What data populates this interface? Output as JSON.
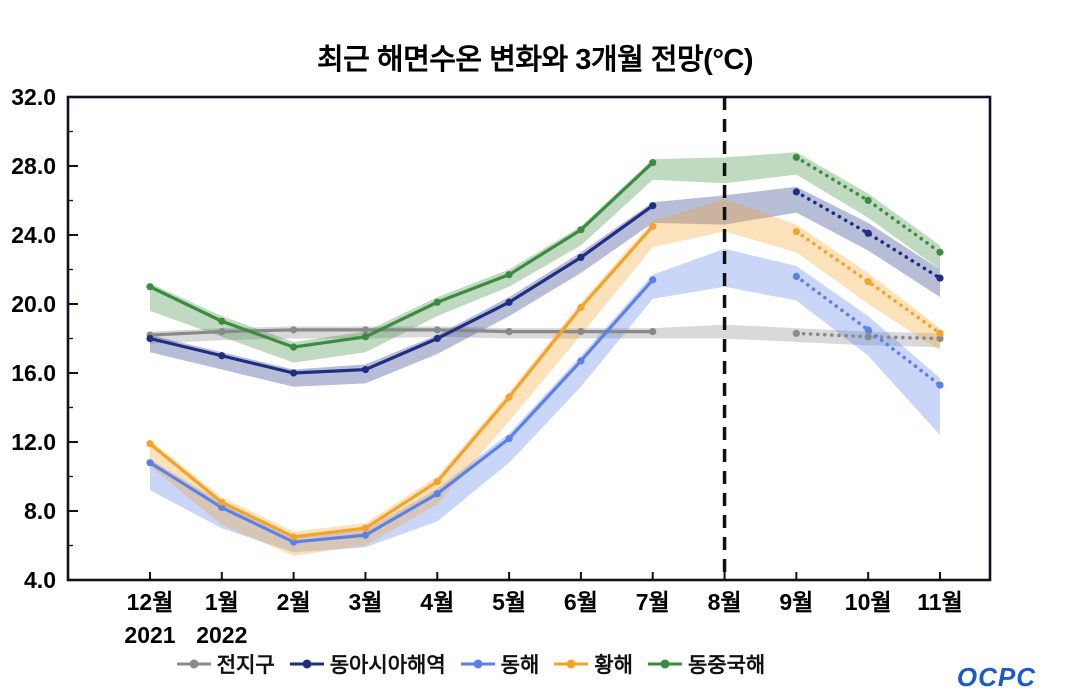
{
  "logo": {
    "text": "OCPC"
  },
  "chart_data": {
    "type": "line",
    "title": "최근 해면수온 변화와 3개월 전망(°C)",
    "ylim": [
      4.0,
      32.0
    ],
    "yticks": [
      4,
      8,
      12,
      16,
      20,
      24,
      28,
      32
    ],
    "ytick_labels": [
      "4.0",
      "8.0",
      "12.0",
      "16.0",
      "20.0",
      "24.0",
      "28.0",
      "32.0"
    ],
    "categories": [
      "12월",
      "1월",
      "2월",
      "3월",
      "4월",
      "5월",
      "6월",
      "7월",
      "8월",
      "9월",
      "10월",
      "11월"
    ],
    "category_sublabels": [
      "2021",
      "2022",
      "",
      "",
      "",
      "",
      "",
      "",
      "",
      "",
      "",
      ""
    ],
    "forecast_divider_index": 8,
    "solid_range": [
      0,
      7
    ],
    "dotted_range": [
      9,
      11
    ],
    "grid": false,
    "legend_position": "bottom",
    "series": [
      {
        "key": "global",
        "name": "전지구",
        "color": "#8a8a8a",
        "values": [
          18.2,
          18.4,
          18.5,
          18.5,
          18.5,
          18.4,
          18.4,
          18.4,
          null,
          18.3,
          18.1,
          18.0
        ],
        "band_low": [
          17.7,
          17.9,
          18.0,
          18.0,
          18.1,
          18.0,
          18.0,
          18.0,
          18.0,
          17.8,
          17.6,
          17.5
        ],
        "band_high": [
          18.4,
          18.6,
          18.7,
          18.7,
          18.7,
          18.6,
          18.6,
          18.6,
          18.8,
          18.6,
          18.4,
          18.3
        ]
      },
      {
        "key": "east-asia",
        "name": "동아시아해역",
        "color": "#1e2e82",
        "values": [
          18.0,
          17.0,
          16.0,
          16.2,
          18.0,
          20.1,
          22.7,
          25.7,
          null,
          26.5,
          24.1,
          21.5
        ],
        "band_low": [
          17.2,
          16.2,
          15.2,
          15.4,
          17.1,
          19.3,
          21.8,
          24.7,
          24.6,
          25.3,
          23.1,
          20.4
        ],
        "band_high": [
          18.2,
          17.2,
          16.2,
          16.5,
          18.2,
          20.4,
          23.0,
          25.9,
          26.3,
          26.8,
          24.7,
          22.0
        ]
      },
      {
        "key": "east-sea",
        "name": "동해",
        "color": "#5b80e8",
        "values": [
          10.8,
          8.2,
          6.2,
          6.6,
          9.0,
          12.2,
          16.7,
          21.4,
          null,
          21.6,
          18.5,
          15.3
        ],
        "band_low": [
          9.2,
          7.0,
          5.6,
          5.9,
          7.4,
          10.8,
          15.2,
          20.3,
          21.0,
          20.2,
          17.0,
          12.4
        ],
        "band_high": [
          11.0,
          8.5,
          6.5,
          6.9,
          9.3,
          12.5,
          17.0,
          21.7,
          23.2,
          22.2,
          19.3,
          15.7
        ]
      },
      {
        "key": "yellow-sea",
        "name": "황해",
        "color": "#f2a42a",
        "values": [
          11.9,
          8.5,
          6.5,
          7.0,
          9.7,
          14.6,
          19.8,
          24.5,
          null,
          24.2,
          21.3,
          18.3
        ],
        "band_low": [
          10.6,
          7.2,
          5.4,
          6.0,
          8.4,
          13.2,
          18.2,
          23.3,
          24.2,
          23.0,
          20.0,
          17.3
        ],
        "band_high": [
          12.1,
          8.8,
          6.8,
          7.3,
          10.0,
          14.9,
          20.1,
          24.8,
          26.1,
          24.6,
          21.8,
          18.6
        ]
      },
      {
        "key": "east-china-sea",
        "name": "동중국해",
        "color": "#3c8b40",
        "values": [
          21.0,
          19.0,
          17.5,
          18.1,
          20.1,
          21.7,
          24.3,
          28.2,
          null,
          28.5,
          26.0,
          23.0
        ],
        "band_low": [
          19.6,
          18.1,
          16.6,
          17.2,
          19.3,
          21.0,
          23.4,
          27.2,
          27.0,
          27.5,
          25.0,
          22.0
        ],
        "band_high": [
          21.2,
          19.3,
          17.8,
          18.4,
          20.4,
          22.0,
          24.5,
          28.4,
          28.5,
          28.8,
          26.4,
          23.4
        ]
      }
    ]
  }
}
